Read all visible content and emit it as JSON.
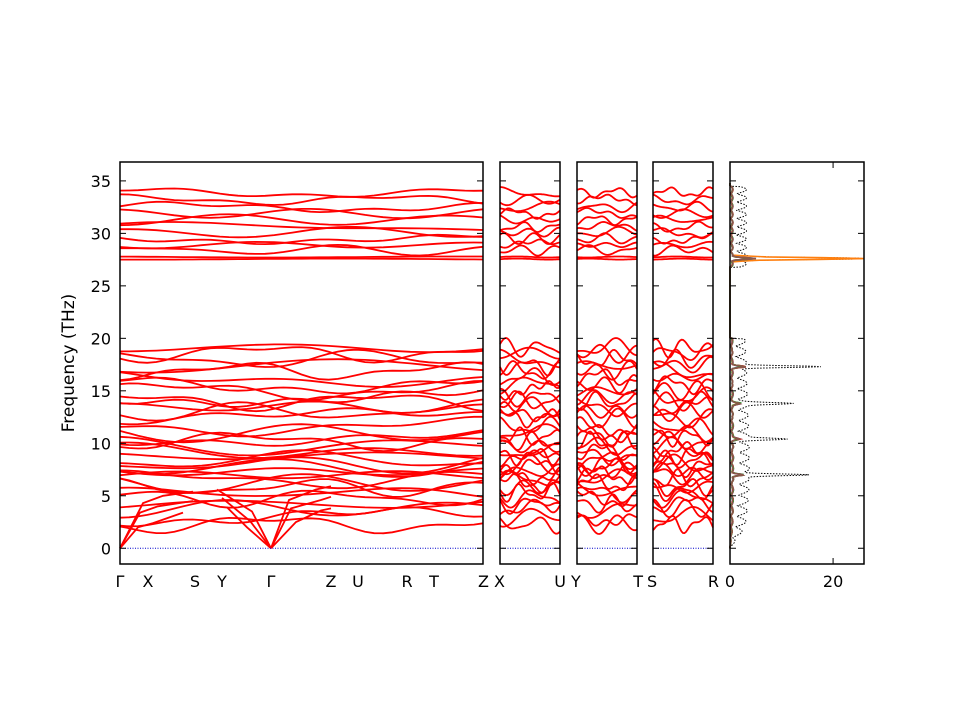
{
  "chart_data": {
    "type": "line",
    "ylabel": "Frequency (THz)",
    "ylim": [
      -1.5,
      36.8
    ],
    "yticks": [
      0,
      5,
      10,
      15,
      20,
      25,
      30,
      35
    ],
    "grid": false,
    "band_color": "#ff0000",
    "zero_line_color": "#0000cc",
    "panels": [
      {
        "labels": [
          "Γ",
          "X",
          "S",
          "Y",
          "Γ",
          "Z",
          "U",
          "R",
          "T",
          "Z"
        ]
      },
      {
        "labels": [
          "X",
          "U"
        ]
      },
      {
        "labels": [
          "Y",
          "T"
        ]
      },
      {
        "labels": [
          "S",
          "R"
        ]
      }
    ],
    "dos": {
      "xlim": [
        0,
        26
      ],
      "xticks": [
        0,
        20
      ],
      "total_color": "#000000",
      "peaks": [
        {
          "freq": 27.6,
          "value": 26
        },
        {
          "freq": 17.3,
          "value": 16
        },
        {
          "freq": 7.0,
          "value": 13
        },
        {
          "freq": 13.8,
          "value": 9
        },
        {
          "freq": 10.4,
          "value": 8
        }
      ],
      "partial_colors": [
        "#1f77b4",
        "#ff7f0e",
        "#9467bd",
        "#d62728",
        "#2ca02c",
        "#8c564b"
      ]
    }
  }
}
